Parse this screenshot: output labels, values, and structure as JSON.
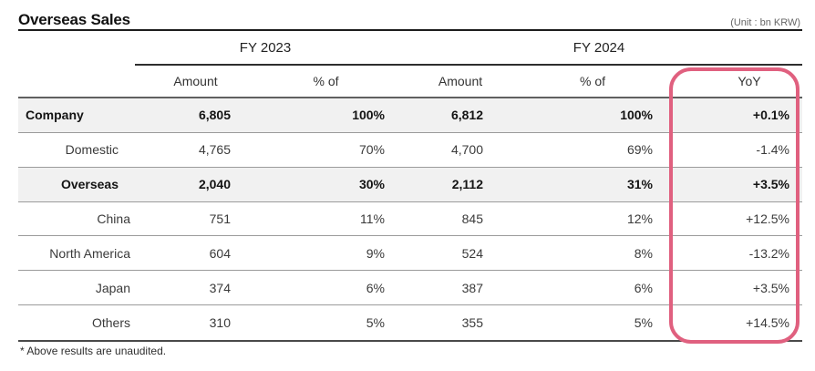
{
  "title": "Overseas Sales",
  "unit_label": "(Unit : bn KRW)",
  "table": {
    "groups": [
      "FY 2023",
      "FY 2024"
    ],
    "headers": [
      "Amount",
      "% of",
      "Amount",
      "% of",
      "YoY"
    ],
    "rows": [
      {
        "label": "Company",
        "fy2023_amount": "6,805",
        "fy2023_pct": "100%",
        "fy2024_amount": "6,812",
        "fy2024_pct": "100%",
        "yoy": "+0.1%"
      },
      {
        "label": "Domestic",
        "fy2023_amount": "4,765",
        "fy2023_pct": "70%",
        "fy2024_amount": "4,700",
        "fy2024_pct": "69%",
        "yoy": "-1.4%"
      },
      {
        "label": "Overseas",
        "fy2023_amount": "2,040",
        "fy2023_pct": "30%",
        "fy2024_amount": "2,112",
        "fy2024_pct": "31%",
        "yoy": "+3.5%"
      },
      {
        "label": "China",
        "fy2023_amount": "751",
        "fy2023_pct": "11%",
        "fy2024_amount": "845",
        "fy2024_pct": "12%",
        "yoy": "+12.5%"
      },
      {
        "label": "North America",
        "fy2023_amount": "604",
        "fy2023_pct": "9%",
        "fy2024_amount": "524",
        "fy2024_pct": "8%",
        "yoy": "-13.2%"
      },
      {
        "label": "Japan",
        "fy2023_amount": "374",
        "fy2023_pct": "6%",
        "fy2024_amount": "387",
        "fy2024_pct": "6%",
        "yoy": "+3.5%"
      },
      {
        "label": "Others",
        "fy2023_amount": "310",
        "fy2023_pct": "5%",
        "fy2024_amount": "355",
        "fy2024_pct": "5%",
        "yoy": "+14.5%"
      }
    ]
  },
  "footnote": "* Above results are unaudited.",
  "colors": {
    "highlight": "#e0607f",
    "shaded_row": "#f1f1f1",
    "rule_dark": "#1c1c1c"
  }
}
